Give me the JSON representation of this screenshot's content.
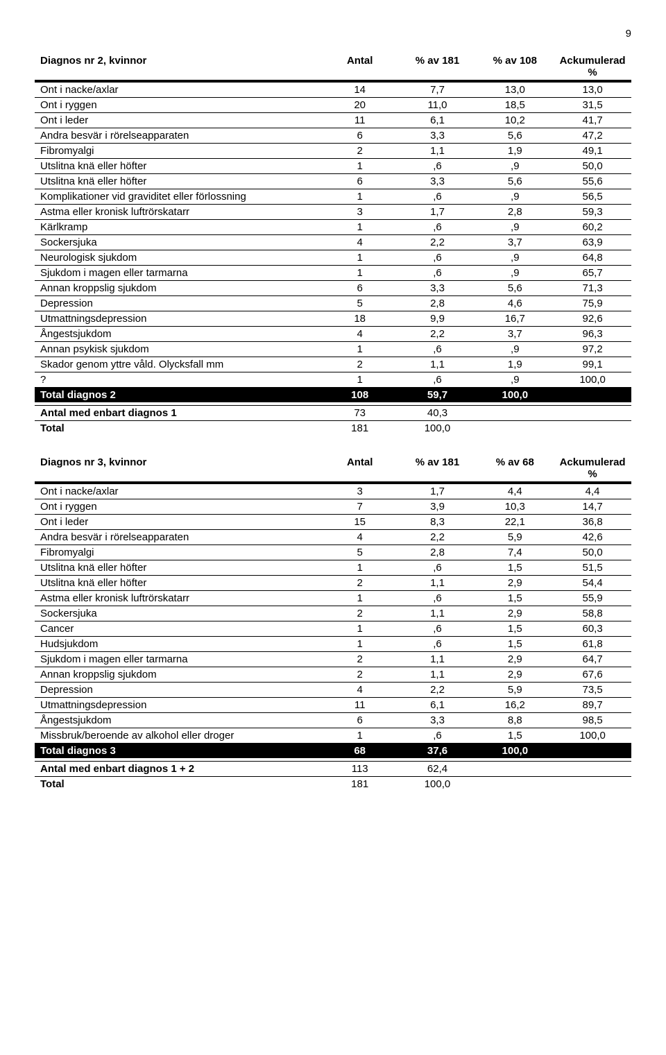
{
  "page_number": "9",
  "table1": {
    "header": [
      "Diagnos nr 2, kvinnor",
      "Antal",
      "% av 181",
      "% av 108",
      "Ackumulerad %"
    ],
    "rows": [
      [
        "Ont i nacke/axlar",
        "14",
        "7,7",
        "13,0",
        "13,0"
      ],
      [
        "Ont i ryggen",
        "20",
        "11,0",
        "18,5",
        "31,5"
      ],
      [
        "Ont i leder",
        "11",
        "6,1",
        "10,2",
        "41,7"
      ],
      [
        "Andra besvär i rörelseapparaten",
        "6",
        "3,3",
        "5,6",
        "47,2"
      ],
      [
        "Fibromyalgi",
        "2",
        "1,1",
        "1,9",
        "49,1"
      ],
      [
        "Utslitna knä eller höfter",
        "1",
        ",6",
        ",9",
        "50,0"
      ],
      [
        "Utslitna knä eller höfter",
        "6",
        "3,3",
        "5,6",
        "55,6"
      ],
      [
        "Komplikationer vid graviditet eller förlossning",
        "1",
        ",6",
        ",9",
        "56,5"
      ],
      [
        "Astma eller kronisk luftrörskatarr",
        "3",
        "1,7",
        "2,8",
        "59,3"
      ],
      [
        "Kärlkramp",
        "1",
        ",6",
        ",9",
        "60,2"
      ],
      [
        "Sockersjuka",
        "4",
        "2,2",
        "3,7",
        "63,9"
      ],
      [
        "Neurologisk sjukdom",
        "1",
        ",6",
        ",9",
        "64,8"
      ],
      [
        "Sjukdom i magen eller tarmarna",
        "1",
        ",6",
        ",9",
        "65,7"
      ],
      [
        "Annan kroppslig sjukdom",
        "6",
        "3,3",
        "5,6",
        "71,3"
      ],
      [
        "Depression",
        "5",
        "2,8",
        "4,6",
        "75,9"
      ],
      [
        "Utmattningsdepression",
        "18",
        "9,9",
        "16,7",
        "92,6"
      ],
      [
        "Ångestsjukdom",
        "4",
        "2,2",
        "3,7",
        "96,3"
      ],
      [
        "Annan psykisk sjukdom",
        "1",
        ",6",
        ",9",
        "97,2"
      ],
      [
        "Skador genom yttre våld. Olycksfall mm",
        "2",
        "1,1",
        "1,9",
        "99,1"
      ],
      [
        "?",
        "1",
        ",6",
        ",9",
        "100,0"
      ]
    ],
    "total_row": [
      "Total diagnos 2",
      "108",
      "59,7",
      "100,0",
      ""
    ],
    "footer_rows": [
      [
        "Antal med enbart diagnos 1",
        "73",
        "40,3",
        "",
        ""
      ],
      [
        "Total",
        "181",
        "100,0",
        "",
        ""
      ]
    ]
  },
  "table2": {
    "header": [
      "Diagnos nr 3, kvinnor",
      "Antal",
      "% av 181",
      "% av 68",
      "Ackumulerad %"
    ],
    "rows": [
      [
        "Ont i nacke/axlar",
        "3",
        "1,7",
        "4,4",
        "4,4"
      ],
      [
        "Ont i ryggen",
        "7",
        "3,9",
        "10,3",
        "14,7"
      ],
      [
        "Ont i leder",
        "15",
        "8,3",
        "22,1",
        "36,8"
      ],
      [
        "Andra besvär i rörelseapparaten",
        "4",
        "2,2",
        "5,9",
        "42,6"
      ],
      [
        "Fibromyalgi",
        "5",
        "2,8",
        "7,4",
        "50,0"
      ],
      [
        "Utslitna knä eller höfter",
        "1",
        ",6",
        "1,5",
        "51,5"
      ],
      [
        "Utslitna knä eller höfter",
        "2",
        "1,1",
        "2,9",
        "54,4"
      ],
      [
        "Astma eller kronisk luftrörskatarr",
        "1",
        ",6",
        "1,5",
        "55,9"
      ],
      [
        "Sockersjuka",
        "2",
        "1,1",
        "2,9",
        "58,8"
      ],
      [
        "Cancer",
        "1",
        ",6",
        "1,5",
        "60,3"
      ],
      [
        "Hudsjukdom",
        "1",
        ",6",
        "1,5",
        "61,8"
      ],
      [
        "Sjukdom i magen eller tarmarna",
        "2",
        "1,1",
        "2,9",
        "64,7"
      ],
      [
        "Annan kroppslig sjukdom",
        "2",
        "1,1",
        "2,9",
        "67,6"
      ],
      [
        "Depression",
        "4",
        "2,2",
        "5,9",
        "73,5"
      ],
      [
        "Utmattningsdepression",
        "11",
        "6,1",
        "16,2",
        "89,7"
      ],
      [
        "Ångestsjukdom",
        "6",
        "3,3",
        "8,8",
        "98,5"
      ],
      [
        "Missbruk/beroende av alkohol eller droger",
        "1",
        ",6",
        "1,5",
        "100,0"
      ]
    ],
    "total_row": [
      "Total diagnos 3",
      "68",
      "37,6",
      "100,0",
      ""
    ],
    "footer_rows": [
      [
        "Antal med enbart diagnos 1 + 2",
        "113",
        "62,4",
        "",
        ""
      ],
      [
        "Total",
        "181",
        "100,0",
        "",
        ""
      ]
    ]
  }
}
